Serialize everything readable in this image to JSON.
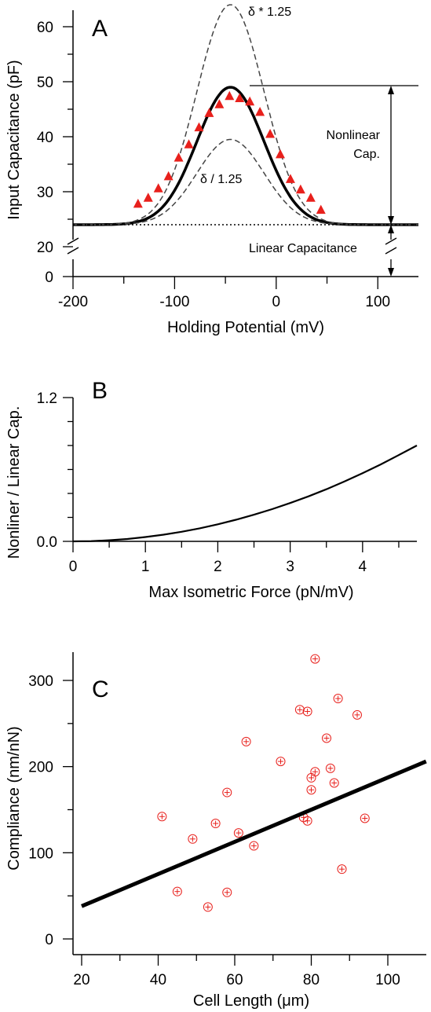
{
  "chart_data": [
    {
      "panel": "A",
      "type": "line",
      "xlabel": "Holding Potential (mV)",
      "ylabel": "Input Capacitance (pF)",
      "xlim": [
        -200,
        140
      ],
      "ylim": [
        0,
        64
      ],
      "axis_break_y": [
        0,
        20
      ],
      "xticks": [
        "-200",
        "-100",
        "0",
        "100"
      ],
      "yticks": [
        "0",
        "20",
        "30",
        "40",
        "50",
        "60"
      ],
      "series": [
        {
          "name": "",
          "style": "solid-bold",
          "color": "#000000",
          "model": {
            "baseline": 24,
            "peak": 49,
            "center": -45,
            "width": 33
          }
        },
        {
          "name": "δ * 1.25",
          "style": "dashed",
          "color": "#444444",
          "model": {
            "baseline": 24,
            "peak": 64,
            "center": -45,
            "width": 33
          }
        },
        {
          "name": "δ / 1.25",
          "style": "dashed",
          "color": "#444444",
          "model": {
            "baseline": 24,
            "peak": 39.5,
            "center": -45,
            "width": 33
          }
        },
        {
          "name": "",
          "style": "dotted",
          "color": "#000000",
          "model": {
            "baseline": 24,
            "peak": 24,
            "center": -45,
            "width": 33
          }
        },
        {
          "name": "",
          "style": "triangle-markers",
          "color": "#e8201c",
          "x": [
            -136,
            -126,
            -116,
            -106,
            -96,
            -86,
            -76,
            -66,
            -56,
            -46,
            -36,
            -26,
            -16,
            -6,
            4,
            14,
            24,
            34,
            44
          ],
          "y": [
            27.8,
            28.9,
            30.6,
            32.8,
            36.2,
            38.6,
            41.7,
            44.3,
            45.9,
            47.4,
            47.0,
            46.4,
            44.5,
            40.5,
            36.8,
            32.3,
            30.4,
            28.9,
            26.7
          ]
        }
      ],
      "annotations": {
        "upper": "δ * 1.25",
        "lower": "δ / 1.25",
        "nonlinear_line1": "Nonlinear",
        "nonlinear_line2": "Cap.",
        "linear": "Linear Capacitance"
      }
    },
    {
      "panel": "B",
      "type": "line",
      "xlabel": "Max Isometric Force (pN/mV)",
      "ylabel": "Nonliner  / Linear  Cap.",
      "xlim": [
        0,
        4.75
      ],
      "ylim": [
        0,
        1.2
      ],
      "xticks": [
        "0",
        "1",
        "2",
        "3",
        "4"
      ],
      "yticks": [
        "0.0",
        "1.2"
      ],
      "series": [
        {
          "name": "",
          "style": "solid",
          "color": "#000000",
          "x": [
            0,
            0.25,
            0.5,
            0.75,
            1.0,
            1.25,
            1.5,
            1.75,
            2.0,
            2.25,
            2.5,
            2.75,
            3.0,
            3.25,
            3.5,
            3.75,
            4.0,
            4.25,
            4.5,
            4.75
          ],
          "y": [
            0.0,
            0.002,
            0.009,
            0.02,
            0.036,
            0.056,
            0.08,
            0.109,
            0.142,
            0.18,
            0.222,
            0.269,
            0.32,
            0.375,
            0.435,
            0.5,
            0.569,
            0.642,
            0.72,
            0.8
          ]
        }
      ]
    },
    {
      "panel": "C",
      "type": "scatter",
      "xlabel": "Cell Length (μm)",
      "ylabel": "Compliance (nm/nN)",
      "xlim": [
        18,
        110
      ],
      "ylim": [
        -5,
        335
      ],
      "xticks": [
        "20",
        "40",
        "60",
        "80",
        "100"
      ],
      "yticks": [
        "0",
        "100",
        "200",
        "300"
      ],
      "series": [
        {
          "name": "",
          "style": "circle-plus-markers",
          "color": "#e8201c",
          "x": [
            41,
            45,
            49,
            53,
            55,
            58,
            58,
            61,
            63,
            65,
            72,
            77,
            78,
            79,
            79,
            80,
            80,
            81,
            81,
            84,
            85,
            86,
            87,
            88,
            92,
            94
          ],
          "y": [
            142,
            55,
            116,
            37,
            134,
            54,
            170,
            123,
            229,
            108,
            206,
            266,
            141,
            137,
            264,
            187,
            173,
            325,
            194,
            233,
            198,
            181,
            279,
            81,
            260,
            140
          ]
        },
        {
          "name": "",
          "style": "solid-bold",
          "color": "#000000",
          "x": [
            20,
            110
          ],
          "y": [
            38,
            206
          ]
        }
      ]
    }
  ]
}
